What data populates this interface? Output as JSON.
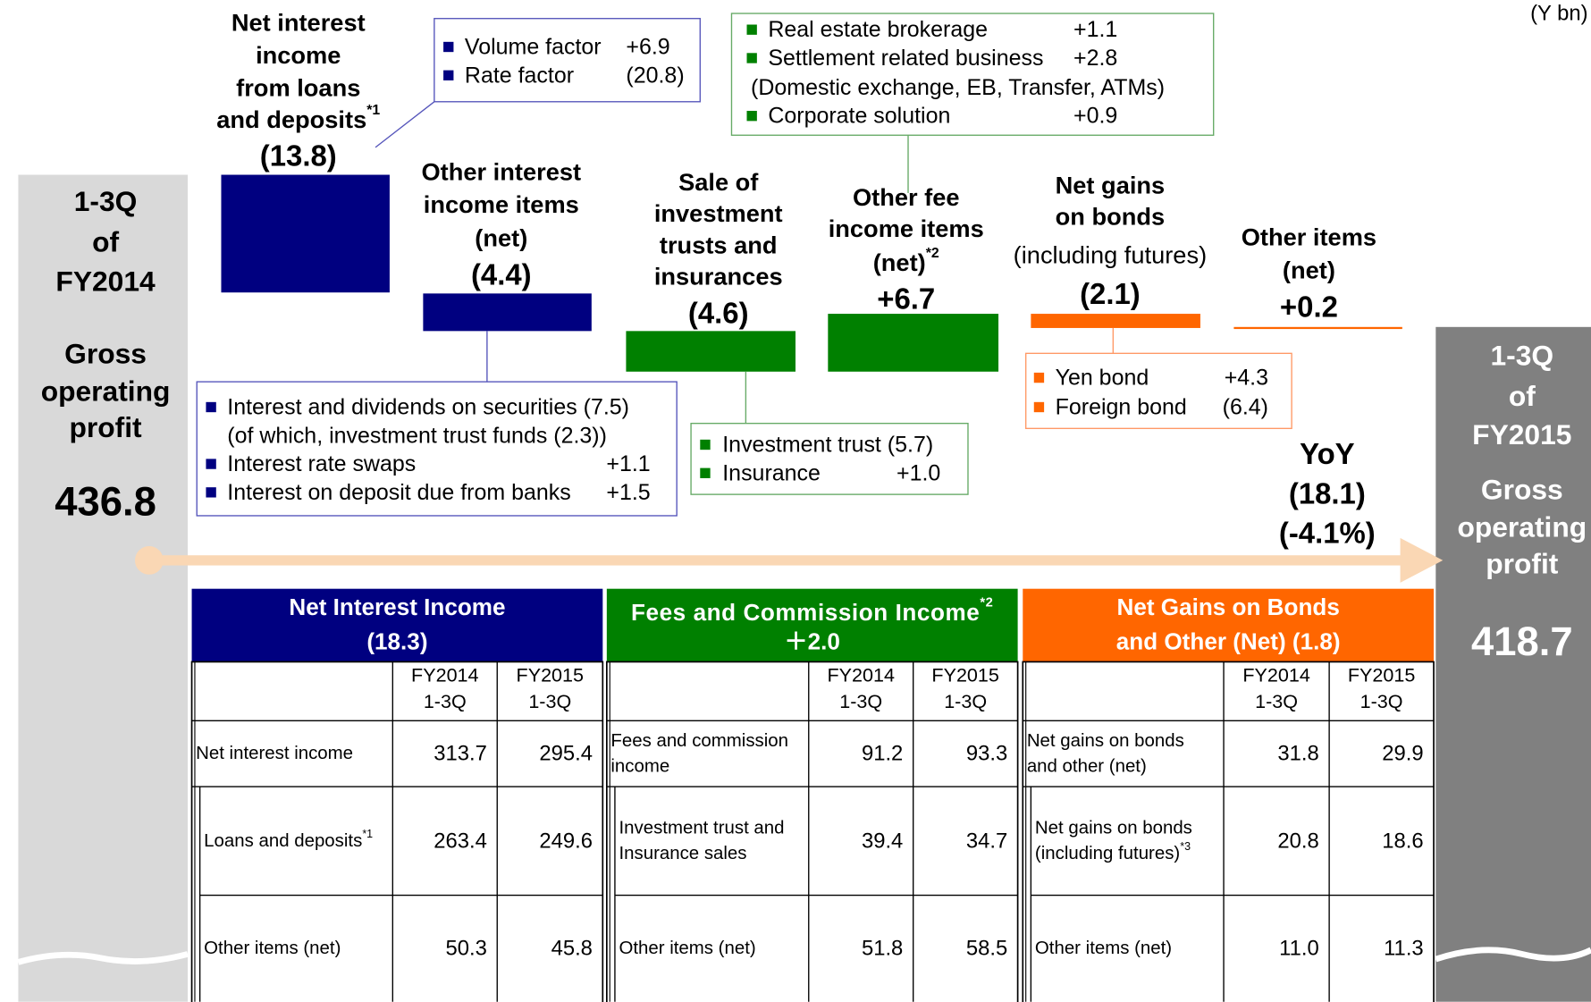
{
  "unit": "(Y bn)",
  "start": {
    "lines": [
      "1-3Q",
      "of",
      "FY2014",
      "Gross",
      "operating",
      "profit"
    ],
    "value": "436.8"
  },
  "end": {
    "lines": [
      "1-3Q",
      "of",
      "FY2015",
      "Gross",
      "operating",
      "profit"
    ],
    "value": "418.7"
  },
  "steps": [
    {
      "title": [
        "Net interest",
        "income",
        "from loans",
        "and deposits"
      ],
      "title_sup": "*1",
      "value": "(13.8)",
      "details": [
        {
          "text": "Volume factor",
          "value": "+6.9"
        },
        {
          "text": "Rate factor",
          "value": "(20.8)"
        }
      ]
    },
    {
      "title": [
        "Other interest",
        "income items",
        "(net)"
      ],
      "value": "(4.4)",
      "details": [
        {
          "text": "Interest and dividends on securities (7.5)"
        },
        {
          "text": "(of which, investment trust funds (2.3))",
          "bullet": false
        },
        {
          "text": "Interest rate swaps",
          "value": "+1.1"
        },
        {
          "text": "Interest on deposit due from banks",
          "value": "+1.5"
        }
      ]
    },
    {
      "title": [
        "Sale of",
        "investment",
        "trusts and",
        "insurances"
      ],
      "value": "(4.6)",
      "details": [
        {
          "text": "Investment trust (5.7)"
        },
        {
          "text": "Insurance",
          "value": "+1.0"
        }
      ]
    },
    {
      "title": [
        "Other fee",
        "income items",
        "(net)"
      ],
      "title_sup": "*2",
      "value": "+6.7",
      "details": [
        {
          "text": "Real estate brokerage",
          "value": "+1.1"
        },
        {
          "text": "Settlement related business",
          "value": "+2.8"
        },
        {
          "text": "(Domestic exchange, EB, Transfer, ATMs)",
          "bullet": false
        },
        {
          "text": "Corporate solution",
          "value": "+0.9"
        }
      ]
    },
    {
      "title": [
        "Net gains",
        "on bonds"
      ],
      "subtitle": "(including futures)",
      "value": "(2.1)",
      "details": [
        {
          "text": "Yen bond",
          "value": "+4.3"
        },
        {
          "text": "Foreign bond",
          "value": "(6.4)"
        }
      ]
    },
    {
      "title": [
        "Other items",
        "(net)"
      ],
      "value": "+0.2"
    }
  ],
  "yoy": [
    "YoY",
    "(18.1)",
    "(-4.1%)"
  ],
  "tables": [
    {
      "header": [
        "Net Interest Income",
        "(18.3)"
      ],
      "columns": [
        [
          "FY2014",
          "1-3Q"
        ],
        [
          "FY2015",
          "1-3Q"
        ]
      ],
      "rows": [
        {
          "label": [
            "Net interest income"
          ],
          "values": [
            "313.7",
            "295.4"
          ]
        },
        {
          "label": [
            "Loans and deposits"
          ],
          "sup": "*1",
          "values": [
            "263.4",
            "249.6"
          ]
        },
        {
          "label": [
            "Other items (net)"
          ],
          "values": [
            "50.3",
            "45.8"
          ]
        }
      ]
    },
    {
      "header": [
        "Fees and Commission Income",
        "＋2.0"
      ],
      "header_sup": "*2",
      "columns": [
        [
          "FY2014",
          "1-3Q"
        ],
        [
          "FY2015",
          "1-3Q"
        ]
      ],
      "rows": [
        {
          "label": [
            "Fees and commission",
            "income"
          ],
          "values": [
            "91.2",
            "93.3"
          ]
        },
        {
          "label": [
            "Investment trust and",
            "Insurance sales"
          ],
          "values": [
            "39.4",
            "34.7"
          ]
        },
        {
          "label": [
            "Other items (net)"
          ],
          "values": [
            "51.8",
            "58.5"
          ]
        }
      ]
    },
    {
      "header": [
        "Net Gains on Bonds",
        "and Other (Net) (1.8)"
      ],
      "columns": [
        [
          "FY2014",
          "1-3Q"
        ],
        [
          "FY2015",
          "1-3Q"
        ]
      ],
      "rows": [
        {
          "label": [
            "Net gains on bonds",
            "and other (net)"
          ],
          "values": [
            "31.8",
            "29.9"
          ]
        },
        {
          "label": [
            "Net gains on bonds",
            "(including futures)"
          ],
          "sup": "*3",
          "values": [
            "20.8",
            "18.6"
          ]
        },
        {
          "label": [
            "Other items (net)"
          ],
          "values": [
            "11.0",
            "11.3"
          ]
        }
      ]
    }
  ]
}
